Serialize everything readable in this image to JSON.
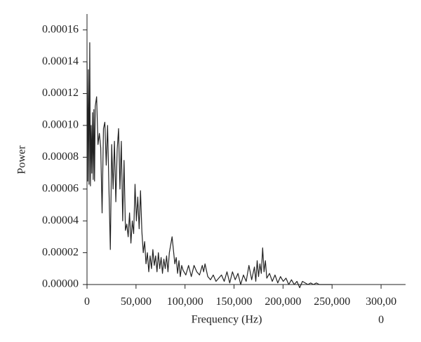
{
  "chart_data": {
    "type": "line",
    "x_label": "Frequency (Hz)",
    "y_label": "Power",
    "color": "#222222",
    "xlim": [
      0,
      325000
    ],
    "ylim": [
      0,
      0.00017
    ],
    "xticks": [
      0,
      {
        "value": 50000,
        "label": "50,000"
      },
      {
        "value": 100000,
        "label": "100,000"
      },
      {
        "value": 150000,
        "label": "150,000"
      },
      {
        "value": 200000,
        "label": "200,000"
      },
      {
        "value": 250000,
        "label": "250,000"
      },
      {
        "value": 300000,
        "label": "300,00\n0"
      }
    ],
    "yticks": [
      {
        "value": 0,
        "label": "0.00000"
      },
      {
        "value": 2e-05,
        "label": "0.00002"
      },
      {
        "value": 4e-05,
        "label": "0.00004"
      },
      {
        "value": 6e-05,
        "label": "0.00006"
      },
      {
        "value": 8e-05,
        "label": "0.00008"
      },
      {
        "value": 0.0001,
        "label": "0.00010"
      },
      {
        "value": 0.00012,
        "label": "0.00012"
      },
      {
        "value": 0.00014,
        "label": "0.00014"
      },
      {
        "value": 0.00016,
        "label": "0.00016"
      }
    ],
    "x": [
      0,
      700,
      1400,
      2100,
      2800,
      3500,
      4200,
      4900,
      5600,
      6300,
      7000,
      7700,
      8400,
      9800,
      11200,
      12600,
      14000,
      15400,
      16800,
      18200,
      19600,
      21000,
      22400,
      23800,
      25200,
      26600,
      28000,
      29400,
      30800,
      32200,
      33600,
      35000,
      36400,
      37800,
      39200,
      40600,
      42000,
      43400,
      44800,
      46200,
      47600,
      49000,
      50400,
      51800,
      53200,
      54600,
      56000,
      57400,
      58800,
      60200,
      61600,
      63000,
      64400,
      65800,
      67200,
      68600,
      70000,
      71400,
      72800,
      74200,
      75600,
      77000,
      78400,
      79800,
      81200,
      82600,
      84000,
      86800,
      89600,
      91000,
      92400,
      93800,
      95200,
      96600,
      98000,
      100800,
      103600,
      106400,
      109200,
      112000,
      114800,
      117600,
      119000,
      120400,
      123200,
      126000,
      128800,
      131600,
      134400,
      137200,
      140000,
      142800,
      145600,
      148400,
      151200,
      154000,
      156800,
      159600,
      162400,
      165200,
      168000,
      170800,
      172200,
      173600,
      175000,
      176400,
      177800,
      179200,
      180600,
      182000,
      183400,
      186200,
      189000,
      191800,
      194600,
      197400,
      200200,
      203000,
      205800,
      208600,
      211400,
      214200,
      217000,
      219800,
      222600,
      225400,
      228200,
      231000,
      234000,
      237000,
      240000,
      250000
    ],
    "values": [
      0.00014,
      6.5e-05,
      0.000135,
      6.3e-05,
      0.000152,
      6.2e-05,
      0.0001,
      7e-05,
      0.000108,
      6.6e-05,
      0.00011,
      6.5e-05,
      0.000112,
      0.000118,
      8.8e-05,
      9.5e-05,
      8.6e-05,
      4.5e-05,
      9.8e-05,
      0.000102,
      7.5e-05,
      0.0001,
      6e-05,
      2.2e-05,
      8.8e-05,
      6e-05,
      9e-05,
      5.2e-05,
      8.5e-05,
      9.8e-05,
      6e-05,
      9e-05,
      4e-05,
      7.8e-05,
      3.4e-05,
      3.8e-05,
      3e-05,
      4.5e-05,
      2.6e-05,
      4e-05,
      3.2e-05,
      6.3e-05,
      4e-05,
      5.5e-05,
      3.5e-05,
      5.9e-05,
      3.3e-05,
      2e-05,
      2.7e-05,
      1.3e-05,
      2e-05,
      8e-06,
      1.8e-05,
      1e-05,
      2.2e-05,
      1.2e-05,
      1.8e-05,
      8e-06,
      2e-05,
      1e-05,
      1.7e-05,
      7e-06,
      1.6e-05,
      1e-05,
      1.8e-05,
      8e-06,
      2e-05,
      3e-05,
      1.3e-05,
      1.7e-05,
      7e-06,
      1.5e-05,
      5e-06,
      1.2e-05,
      9e-06,
      6e-06,
      1.2e-05,
      5e-06,
      1.2e-05,
      8e-06,
      6e-06,
      1.2e-05,
      8e-06,
      1.3e-05,
      5e-06,
      3e-06,
      6e-06,
      2e-06,
      4e-06,
      6e-06,
      2e-06,
      8e-06,
      1e-06,
      8e-06,
      3e-06,
      7e-06,
      0,
      6e-06,
      2e-06,
      1.2e-05,
      3e-06,
      1.1e-05,
      2e-06,
      1.5e-05,
      5e-06,
      1.3e-05,
      7e-06,
      2.3e-05,
      8e-06,
      1.5e-05,
      4e-06,
      7e-06,
      2e-06,
      6e-06,
      1e-06,
      5e-06,
      2e-06,
      4e-06,
      0,
      3e-06,
      0,
      2e-06,
      -2e-06,
      2e-06,
      1e-06,
      0,
      1e-06,
      0,
      1e-06,
      0,
      0,
      0
    ]
  }
}
